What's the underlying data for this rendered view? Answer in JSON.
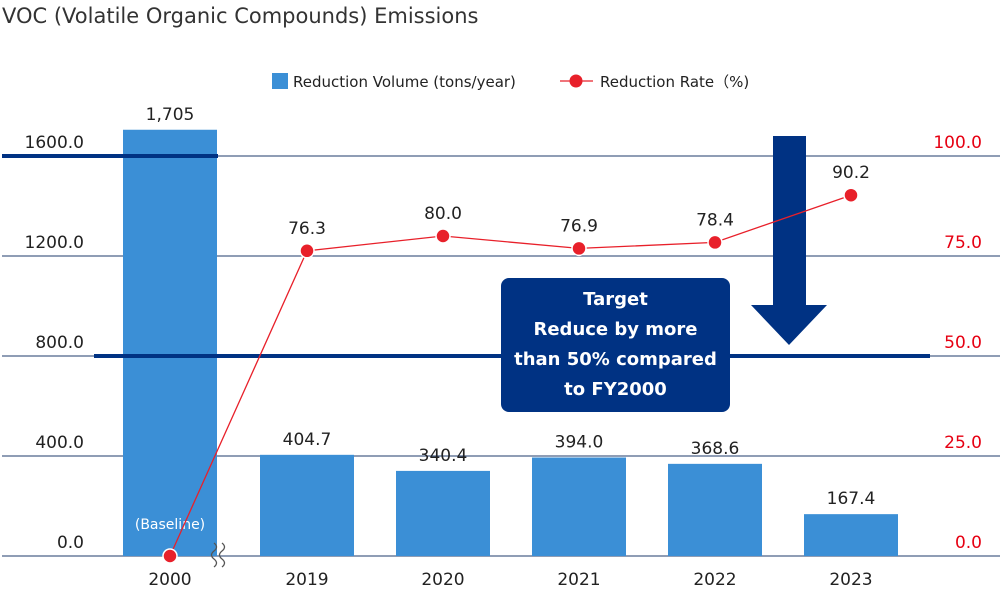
{
  "chart_data": {
    "type": "bar+line",
    "title": "VOC (Volatile Organic Compounds) Emissions",
    "categories": [
      "2000",
      "2019",
      "2020",
      "2021",
      "2022",
      "2023"
    ],
    "series": [
      {
        "name": "Reduction Volume (tons/year)",
        "type": "bar",
        "axis": "left",
        "values": [
          1705,
          404.7,
          340.4,
          394.0,
          368.6,
          167.4
        ],
        "labels": [
          "1,705",
          "404.7",
          "340.4",
          "394.0",
          "368.6",
          "167.4"
        ]
      },
      {
        "name": "Reduction Rate（%)",
        "type": "line",
        "axis": "right",
        "values": [
          0,
          76.3,
          80.0,
          76.9,
          78.4,
          90.2
        ],
        "labels": [
          "",
          "76.3",
          "80.0",
          "76.9",
          "78.4",
          "90.2"
        ]
      }
    ],
    "left_axis": {
      "ticks": [
        "0.0",
        "400.0",
        "800.0",
        "1200.0",
        "1600.0"
      ],
      "ylim": [
        0,
        2000
      ]
    },
    "right_axis": {
      "ticks": [
        "0.0",
        "25.0",
        "50.0",
        "75.0",
        "100.0"
      ],
      "ylim": [
        0,
        125
      ]
    },
    "reference_lines": [
      {
        "axis": "left",
        "value": 1600
      },
      {
        "axis": "right",
        "value": 50
      }
    ],
    "baseline_note": "(Baseline)",
    "legend_position": "top",
    "colors": {
      "bar": "#3b8fd6",
      "line": "#e8202a",
      "right_axis_text": "#e60012",
      "navy": "#003283",
      "grid": "#1f3b6b"
    }
  },
  "target_box": {
    "lines": [
      "Target",
      "Reduce by more",
      "than 50% compared",
      "to FY2000"
    ]
  }
}
